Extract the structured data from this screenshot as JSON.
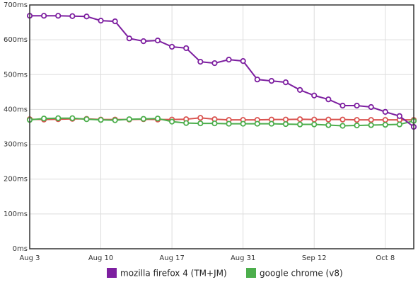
{
  "chart_data": {
    "type": "line",
    "categories": [
      "Aug 3",
      null,
      null,
      null,
      null,
      "Aug 10",
      null,
      null,
      null,
      null,
      "Aug 17",
      null,
      null,
      null,
      null,
      "Aug 31",
      null,
      null,
      null,
      null,
      "Sep 12",
      null,
      null,
      null,
      null,
      "Oct 8",
      null,
      null
    ],
    "series": [
      {
        "name": "mozilla firefox 4 (TM+JM)",
        "color": "#7d1fa0",
        "values": [
          669,
          669,
          669,
          668,
          667,
          655,
          653,
          604,
          596,
          598,
          580,
          576,
          537,
          533,
          543,
          539,
          486,
          482,
          478,
          456,
          440,
          429,
          411,
          411,
          407,
          393,
          381,
          350
        ]
      },
      {
        "name": "google chrome (v8)",
        "color": "#4cae4c",
        "values": [
          370,
          374,
          375,
          375,
          372,
          370,
          369,
          372,
          373,
          374,
          365,
          361,
          360,
          360,
          359,
          359,
          359,
          359,
          358,
          357,
          357,
          355,
          353,
          354,
          355,
          356,
          357,
          367
        ]
      },
      {
        "color": "#d9534f",
        "values": [
          372,
          371,
          372,
          373,
          373,
          371,
          371,
          371,
          372,
          371,
          371,
          372,
          376,
          372,
          370,
          370,
          370,
          371,
          371,
          372,
          371,
          371,
          371,
          370,
          370,
          370,
          370,
          370
        ]
      }
    ],
    "ylim": [
      0,
      700
    ],
    "yticks": [
      {
        "value": 0,
        "label": "0ms"
      },
      {
        "value": 100,
        "label": "100ms"
      },
      {
        "value": 200,
        "label": "200ms"
      },
      {
        "value": 300,
        "label": "300ms"
      },
      {
        "value": 400,
        "label": "400ms"
      },
      {
        "value": 500,
        "label": "500ms"
      },
      {
        "value": 600,
        "label": "600ms"
      },
      {
        "value": 700,
        "label": "700ms"
      }
    ],
    "grid": true
  }
}
